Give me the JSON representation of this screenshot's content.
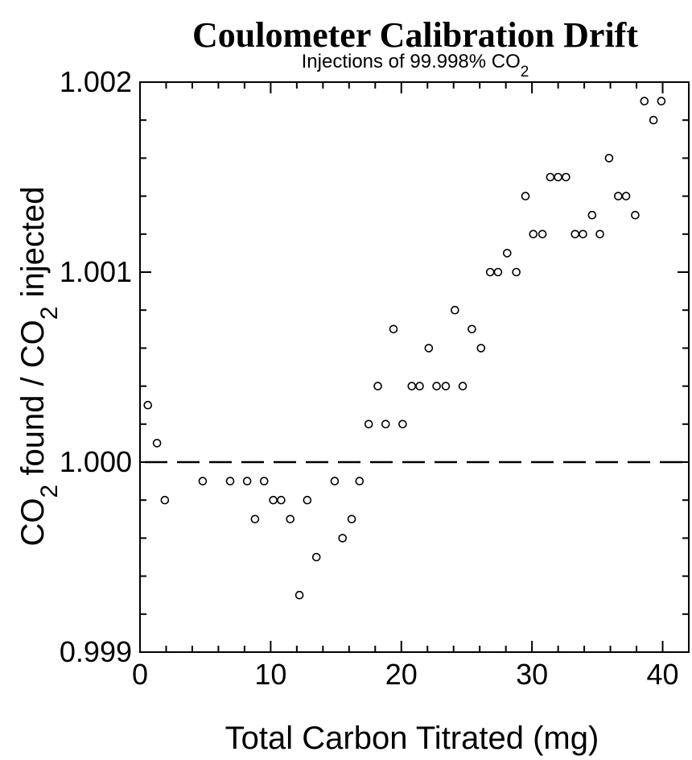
{
  "chart_data": {
    "type": "scatter",
    "title": "Coulometer Calibration Drift",
    "subtitle": "Injections of 99.998% CO2",
    "xlabel": "Total Carbon Titrated (mg)",
    "ylabel": "CO2 found / CO2 injected",
    "xlim": [
      0,
      42
    ],
    "ylim": [
      0.999,
      1.002
    ],
    "x_ticks": [
      {
        "value": 0,
        "label": "0"
      },
      {
        "value": 10,
        "label": "10"
      },
      {
        "value": 20,
        "label": "20"
      },
      {
        "value": 30,
        "label": "30"
      },
      {
        "value": 40,
        "label": "40"
      }
    ],
    "y_ticks": [
      {
        "value": 0.999,
        "label": "0.999"
      },
      {
        "value": 1.0,
        "label": "1.000"
      },
      {
        "value": 1.001,
        "label": "1.001"
      },
      {
        "value": 1.002,
        "label": "1.002"
      }
    ],
    "x_minor_step": 2,
    "y_minor_step": 0.0002,
    "reference_line": {
      "y": 1.0,
      "style": "dashed"
    },
    "grid": false,
    "legend": "none",
    "series": [
      {
        "points": [
          [
            0.6,
            1.0003
          ],
          [
            1.3,
            1.0001
          ],
          [
            1.9,
            0.9998
          ],
          [
            4.8,
            0.9999
          ],
          [
            6.9,
            0.9999
          ],
          [
            8.2,
            0.9999
          ],
          [
            8.8,
            0.9997
          ],
          [
            9.5,
            0.9999
          ],
          [
            10.2,
            0.9998
          ],
          [
            10.8,
            0.9998
          ],
          [
            11.5,
            0.9997
          ],
          [
            12.2,
            0.9993
          ],
          [
            12.8,
            0.9998
          ],
          [
            13.5,
            0.9995
          ],
          [
            14.9,
            0.9999
          ],
          [
            15.5,
            0.9996
          ],
          [
            16.2,
            0.9997
          ],
          [
            16.8,
            0.9999
          ],
          [
            17.5,
            1.0002
          ],
          [
            18.2,
            1.0004
          ],
          [
            18.8,
            1.0002
          ],
          [
            19.4,
            1.0007
          ],
          [
            20.1,
            1.0002
          ],
          [
            20.8,
            1.0004
          ],
          [
            21.4,
            1.0004
          ],
          [
            22.1,
            1.0006
          ],
          [
            22.7,
            1.0004
          ],
          [
            23.4,
            1.0004
          ],
          [
            24.1,
            1.0008
          ],
          [
            24.7,
            1.0004
          ],
          [
            25.4,
            1.0007
          ],
          [
            26.1,
            1.0006
          ],
          [
            26.8,
            1.001
          ],
          [
            27.4,
            1.001
          ],
          [
            28.1,
            1.0011
          ],
          [
            28.8,
            1.001
          ],
          [
            29.5,
            1.0014
          ],
          [
            30.1,
            1.0012
          ],
          [
            30.8,
            1.0012
          ],
          [
            31.4,
            1.0015
          ],
          [
            32.0,
            1.0015
          ],
          [
            32.6,
            1.0015
          ],
          [
            33.3,
            1.0012
          ],
          [
            33.9,
            1.0012
          ],
          [
            34.6,
            1.0013
          ],
          [
            35.2,
            1.0012
          ],
          [
            35.9,
            1.0016
          ],
          [
            36.6,
            1.0014
          ],
          [
            37.2,
            1.0014
          ],
          [
            37.9,
            1.0013
          ],
          [
            38.6,
            1.0019
          ],
          [
            39.3,
            1.0018
          ],
          [
            39.9,
            1.0019
          ]
        ]
      }
    ]
  }
}
